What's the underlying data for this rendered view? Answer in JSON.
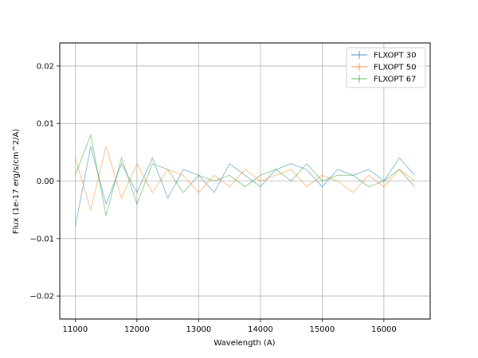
{
  "chart_data": {
    "type": "line",
    "title": "",
    "xlabel": "Wavelength (A)",
    "ylabel": "Flux (1e-17 erg/s/cm^2/A)",
    "xlim": [
      10750,
      16750
    ],
    "ylim": [
      -0.024,
      0.024
    ],
    "xticks": [
      11000,
      12000,
      13000,
      14000,
      15000,
      16000
    ],
    "yticks": [
      -0.02,
      -0.01,
      0.0,
      0.01,
      0.02
    ],
    "ytick_labels": [
      "−0.02",
      "−0.01",
      "0.00",
      "0.01",
      "0.02"
    ],
    "grid": true,
    "legend_position": "top-right",
    "series": [
      {
        "name": "FLXOPT 30",
        "color": "#1f77b4",
        "x": [
          11000,
          11250,
          11500,
          11750,
          12000,
          12250,
          12500,
          12750,
          13000,
          13250,
          13500,
          13750,
          14000,
          14250,
          14500,
          14750,
          15000,
          15250,
          15500,
          15750,
          16000,
          16250,
          16500
        ],
        "y": [
          -0.008,
          0.006,
          -0.004,
          0.003,
          -0.002,
          0.004,
          -0.003,
          0.002,
          0.001,
          -0.002,
          0.003,
          0.001,
          -0.001,
          0.002,
          0.003,
          0.002,
          -0.001,
          0.002,
          0.001,
          0.002,
          0.0,
          0.004,
          0.001
        ]
      },
      {
        "name": "FLXOPT 50",
        "color": "#ff7f0e",
        "x": [
          11000,
          11250,
          11500,
          11750,
          12000,
          12250,
          12500,
          12750,
          13000,
          13250,
          13500,
          13750,
          14000,
          14250,
          14500,
          14750,
          15000,
          15250,
          15500,
          15750,
          16000,
          16250,
          16500
        ],
        "y": [
          0.004,
          -0.005,
          0.006,
          -0.003,
          0.003,
          -0.002,
          0.002,
          0.001,
          -0.002,
          0.001,
          -0.001,
          0.002,
          0.0,
          0.001,
          0.002,
          -0.001,
          0.001,
          0.0,
          -0.002,
          0.001,
          -0.001,
          0.002,
          0.0
        ]
      },
      {
        "name": "FLXOPT 67",
        "color": "#2ca02c",
        "x": [
          11000,
          11250,
          11500,
          11750,
          12000,
          12250,
          12500,
          12750,
          13000,
          13250,
          13500,
          13750,
          14000,
          14250,
          14500,
          14750,
          15000,
          15250,
          15500,
          15750,
          16000,
          16250,
          16500
        ],
        "y": [
          0.001,
          0.008,
          -0.006,
          0.004,
          -0.004,
          0.003,
          0.002,
          -0.002,
          0.001,
          0.0,
          0.001,
          -0.001,
          0.001,
          0.002,
          0.0,
          0.003,
          0.0,
          0.001,
          0.001,
          -0.001,
          0.0,
          0.002,
          -0.001
        ]
      }
    ]
  }
}
